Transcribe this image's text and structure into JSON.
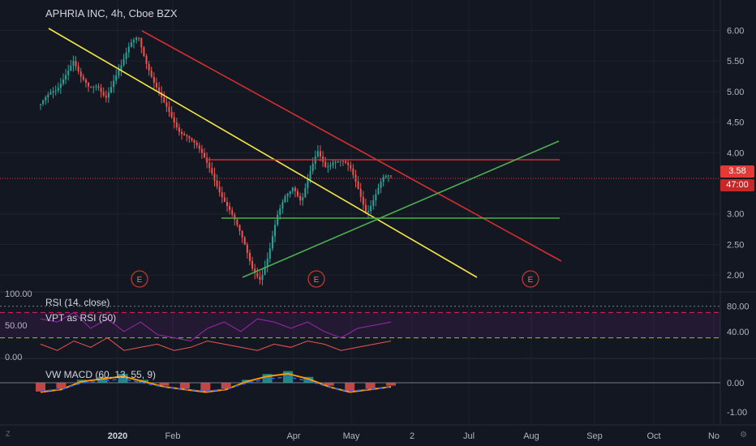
{
  "header": {
    "title": "APHRIA INC, 4h, Cboe BZX"
  },
  "price": {
    "last": "3.58",
    "countdown": "47:00"
  },
  "indicators": {
    "rsi_label": "RSI (14, close)",
    "vpt_label": "VPT as RSI (50)",
    "macd_label": "VW MACD (60, 13, 55, 9)"
  },
  "colors": {
    "background": "#131722",
    "grid": "#1e222d",
    "up": "#26a69a",
    "down": "#ef5350",
    "trend_yellow": "#f5e642",
    "trend_red": "#d32f2f",
    "trend_green": "#4caf50",
    "rsi_line": "#9c27b0",
    "price_badge": "#e53935"
  },
  "icons": {
    "left_bottom": "z-icon",
    "right_bottom": "gear-icon"
  },
  "chart_data": [
    {
      "type": "candlestick",
      "title": "APHRIA INC, 4h, Cboe BZX",
      "x_ticks": [
        "2020",
        "Feb",
        "Apr",
        "May",
        "2",
        "Jul",
        "Aug",
        "Sep",
        "Oct",
        "No"
      ],
      "y_ticks": [
        "6.00",
        "5.50",
        "5.00",
        "4.50",
        "4.00",
        "3.00",
        "2.50",
        "2.00"
      ],
      "ylim": [
        1.75,
        6.1
      ],
      "close_trace": [
        4.8,
        4.9,
        5.0,
        5.3,
        5.55,
        5.2,
        5.0,
        5.1,
        4.95,
        5.2,
        5.4,
        5.75,
        5.95,
        5.5,
        5.1,
        4.8,
        4.6,
        4.4,
        4.3,
        4.1,
        3.9,
        3.7,
        3.4,
        3.1,
        2.8,
        2.5,
        2.15,
        1.95,
        2.3,
        2.9,
        3.3,
        3.5,
        3.2,
        3.6,
        4.0,
        3.8,
        3.9,
        3.85,
        3.7,
        3.4,
        3.05,
        3.3,
        3.55,
        3.58
      ],
      "trendlines": [
        {
          "color": "yellow",
          "from": [
            "Dec",
            6.0
          ],
          "to": [
            "Jul",
            1.85
          ]
        },
        {
          "color": "red",
          "from": [
            "Jan",
            5.95
          ],
          "to": [
            "Aug",
            2.05
          ]
        },
        {
          "color": "red",
          "from": [
            "Feb",
            3.75
          ],
          "to": [
            "Aug",
            3.75
          ]
        },
        {
          "color": "green",
          "from": [
            "Mar",
            2.75
          ],
          "to": [
            "Aug",
            2.75
          ]
        },
        {
          "color": "green",
          "from": [
            "Mar",
            1.85
          ],
          "to": [
            "Aug",
            4.1
          ]
        }
      ],
      "earnings_markers": [
        {
          "label": "E",
          "at": "Jan"
        },
        {
          "label": "E",
          "at": "Apr"
        },
        {
          "label": "E",
          "at": "Jul"
        }
      ],
      "last_price": 3.58
    },
    {
      "type": "line",
      "series": [
        {
          "name": "RSI (14, close)",
          "values": [
            60,
            55,
            70,
            45,
            60,
            40,
            55,
            35,
            30,
            25,
            45,
            55,
            40,
            60,
            55,
            45,
            55,
            40,
            30,
            45,
            50,
            55
          ]
        },
        {
          "name": "VPT as RSI (50)",
          "values": [
            20,
            10,
            25,
            15,
            30,
            10,
            15,
            20,
            10,
            15,
            25,
            20,
            15,
            10,
            20,
            15,
            25,
            20,
            10,
            15,
            20,
            25
          ]
        }
      ],
      "y_ticks_left": [
        "100.00",
        "50.00",
        "0.00"
      ],
      "y_ticks_right": [
        "80.00",
        "40.00"
      ],
      "levels": [
        70,
        30
      ]
    },
    {
      "type": "bar",
      "title": "VW MACD (60, 13, 55, 9)",
      "y_ticks": [
        "0.00",
        "-1.00"
      ],
      "histogram": [
        -0.3,
        -0.2,
        0.1,
        0.2,
        0.3,
        0.1,
        -0.1,
        -0.2,
        -0.3,
        -0.2,
        0.1,
        0.3,
        0.4,
        0.2,
        -0.1,
        -0.3,
        -0.2,
        -0.1
      ]
    }
  ]
}
